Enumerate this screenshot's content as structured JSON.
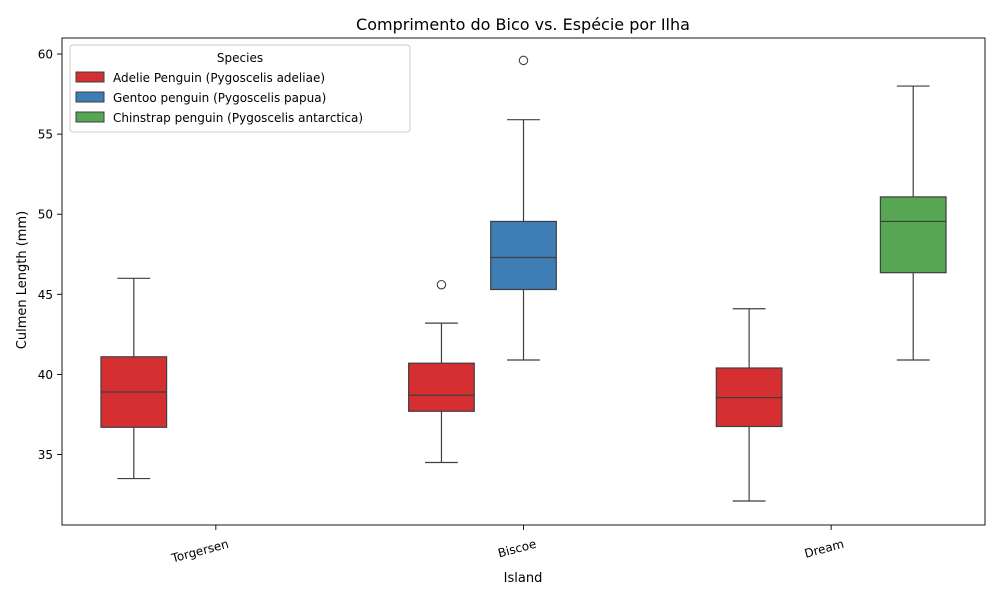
{
  "chart_data": {
    "type": "box",
    "title": "Comprimento do Bico vs. Espécie por Ilha",
    "xlabel": "Island",
    "ylabel": "Culmen Length (mm)",
    "categories": [
      "Torgersen",
      "Biscoe",
      "Dream"
    ],
    "ylim": [
      30.6,
      61.0
    ],
    "yticks": [
      35,
      40,
      45,
      50,
      55,
      60
    ],
    "grid": false,
    "legend": {
      "title": "Species",
      "placement": "top-left"
    },
    "series": [
      {
        "name": "Adelie Penguin (Pygoscelis adeliae)",
        "color": "#d62f32",
        "boxes": [
          {
            "category": "Torgersen",
            "whisker_low": 33.5,
            "q1": 36.7,
            "median": 38.9,
            "q3": 41.1,
            "whisker_high": 46.0,
            "outliers": []
          },
          {
            "category": "Biscoe",
            "whisker_low": 34.5,
            "q1": 37.7,
            "median": 38.7,
            "q3": 40.7,
            "whisker_high": 43.2,
            "outliers": [
              45.6
            ]
          },
          {
            "category": "Dream",
            "whisker_low": 32.1,
            "q1": 36.75,
            "median": 38.55,
            "q3": 40.4,
            "whisker_high": 44.1,
            "outliers": []
          }
        ]
      },
      {
        "name": "Gentoo penguin (Pygoscelis papua)",
        "color": "#3f7db5",
        "boxes": [
          {
            "category": "Biscoe",
            "whisker_low": 40.9,
            "q1": 45.3,
            "median": 47.3,
            "q3": 49.55,
            "whisker_high": 55.9,
            "outliers": [
              59.6
            ]
          }
        ]
      },
      {
        "name": "Chinstrap penguin (Pygoscelis antarctica)",
        "color": "#57a653",
        "boxes": [
          {
            "category": "Dream",
            "whisker_low": 40.9,
            "q1": 46.35,
            "median": 49.55,
            "q3": 51.08,
            "whisker_high": 58.0,
            "outliers": []
          }
        ]
      }
    ]
  }
}
